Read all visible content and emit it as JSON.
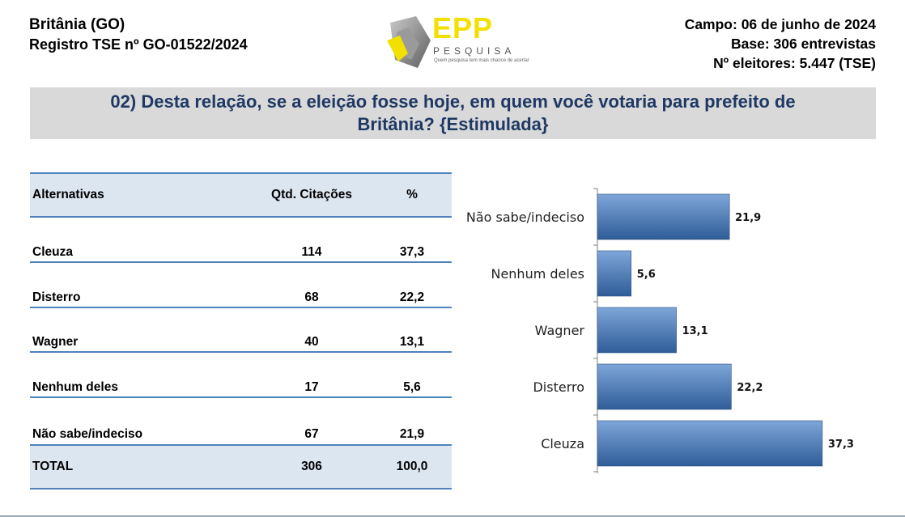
{
  "header": {
    "location": "Britânia (GO)",
    "registry": "Registro TSE nº GO-01522/2024",
    "field": "Campo: 06 de junho de 2024",
    "base": "Base: 306 entrevistas",
    "voters": "Nº eleitores: 5.447 (TSE)"
  },
  "logo": {
    "name": "EPP",
    "sub": "PESQUISA",
    "tagline": "Quem pesquisa tem mais chance de acertar",
    "colors": {
      "yellow": "#f2e100",
      "gray": "#8c8c8c"
    }
  },
  "question": "02) Desta relação, se a eleição fosse hoje, em quem você votaria para prefeito de Britânia? {Estimulada}",
  "table": {
    "headers": [
      "Alternativas",
      "Qtd. Citações",
      "%"
    ],
    "rows": [
      {
        "name": "Cleuza",
        "qty": "114",
        "pct": "37,3"
      },
      {
        "name": "Disterro",
        "qty": "68",
        "pct": "22,2"
      },
      {
        "name": "Wagner",
        "qty": "40",
        "pct": "13,1"
      },
      {
        "name": "Nenhum deles",
        "qty": "17",
        "pct": "5,6"
      },
      {
        "name": "Não sabe/indeciso",
        "qty": "67",
        "pct": "21,9"
      }
    ],
    "total": {
      "name": "TOTAL",
      "qty": "306",
      "pct": "100,0"
    }
  },
  "chart_data": {
    "type": "bar",
    "orientation": "horizontal",
    "categories": [
      "Não sabe/indeciso",
      "Nenhum deles",
      "Wagner",
      "Disterro",
      "Cleuza"
    ],
    "values": [
      21.9,
      5.6,
      13.1,
      22.2,
      37.3
    ],
    "value_labels": [
      "21,9",
      "5,6",
      "13,1",
      "22,2",
      "37,3"
    ],
    "xlim": [
      0,
      40
    ],
    "grid": false,
    "legend": "none",
    "colors": {
      "bar_top": "#7ea6d9",
      "bar_bottom": "#2f5d98",
      "axis": "#7f7f7f"
    }
  }
}
